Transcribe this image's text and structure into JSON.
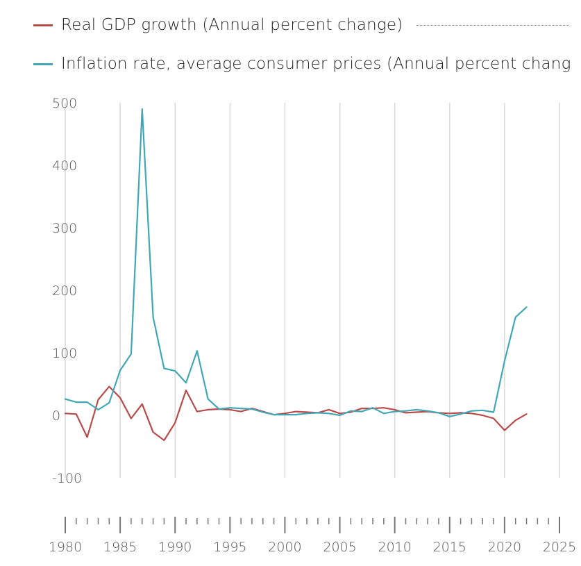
{
  "chart_data": {
    "type": "line",
    "title": "",
    "xlabel": "",
    "ylabel": "",
    "xlim": [
      1980,
      2025
    ],
    "ylim": [
      -100,
      500
    ],
    "y_ticks": [
      500,
      400,
      300,
      200,
      100,
      0,
      -100
    ],
    "x_ticks": [
      1980,
      1985,
      1990,
      1995,
      2000,
      2005,
      2010,
      2015,
      2020,
      2025
    ],
    "grid": "vertical",
    "legend_position": "top",
    "x": [
      1980,
      1981,
      1982,
      1983,
      1984,
      1985,
      1986,
      1987,
      1988,
      1989,
      1990,
      1991,
      1992,
      1993,
      1994,
      1995,
      1996,
      1997,
      1998,
      1999,
      2000,
      2001,
      2002,
      2003,
      2004,
      2005,
      2006,
      2007,
      2008,
      2009,
      2010,
      2011,
      2012,
      2013,
      2014,
      2015,
      2016,
      2017,
      2018,
      2019,
      2020,
      2021,
      2022
    ],
    "series": [
      {
        "name": "Real GDP growth (Annual percent change)",
        "color": "#b84a4a",
        "values": [
          3,
          2,
          -35,
          25,
          46,
          28,
          -5,
          18,
          -27,
          -40,
          -12,
          40,
          6,
          9,
          10,
          9,
          6,
          11,
          6,
          1,
          3,
          6,
          5,
          4,
          9,
          3,
          5,
          11,
          11,
          12,
          9,
          4,
          5,
          6,
          4,
          3,
          4,
          3,
          0,
          -5,
          -24,
          -8,
          2
        ]
      },
      {
        "name": "Inflation rate, average consumer prices (Annual percent chang",
        "color": "#41a7b5",
        "values": [
          26,
          21,
          21,
          9,
          20,
          72,
          98,
          490,
          157,
          75,
          71,
          52,
          103,
          26,
          10,
          12,
          11,
          10,
          5,
          1,
          1,
          1,
          3,
          4,
          3,
          0,
          7,
          6,
          12,
          3,
          6,
          7,
          9,
          7,
          4,
          -2,
          2,
          7,
          8,
          5,
          87,
          157,
          173
        ]
      }
    ]
  }
}
